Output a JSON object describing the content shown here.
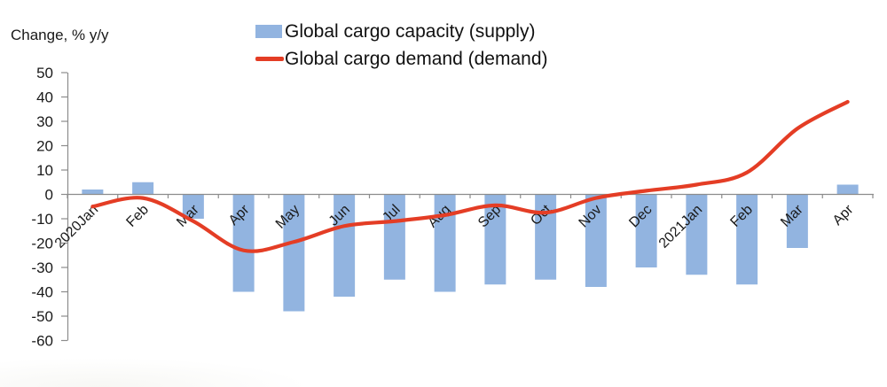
{
  "header": {
    "axis_unit_label": "Change, % y/y"
  },
  "legend": {
    "items": [
      {
        "label": "Global cargo capacity (supply)",
        "type": "bar",
        "color": "#92b4e0"
      },
      {
        "label": "Global cargo demand (demand)",
        "type": "line",
        "color": "#e43d25"
      }
    ]
  },
  "chart_data": {
    "type": "bar+line",
    "title": "",
    "ylabel": "Change, % y/y",
    "xlabel": "",
    "ylim": [
      -60,
      50
    ],
    "ytick_step": 10,
    "grid": false,
    "legend_position": "top",
    "axis_color": "#8c8c8c",
    "text_color": "#1a1a1a",
    "categories": [
      "2020Jan",
      "Feb",
      "Mar",
      "Apr",
      "May",
      "Jun",
      "Jul",
      "Aug",
      "Sep",
      "Oct",
      "Nov",
      "Dec",
      "2021Jan",
      "Feb",
      "Mar",
      "Apr"
    ],
    "series": [
      {
        "name": "Global cargo capacity (supply)",
        "type": "bar",
        "color": "#92b4e0",
        "values": [
          2,
          5,
          -10,
          -40,
          -48,
          -42,
          -35,
          -40,
          -37,
          -35,
          -38,
          -30,
          -33,
          -37,
          -22,
          4
        ]
      },
      {
        "name": "Global cargo demand (demand)",
        "type": "line",
        "smooth": true,
        "color": "#e43d25",
        "values": [
          -5,
          -1.5,
          -11,
          -23,
          -19.5,
          -13,
          -11,
          -8.5,
          -4.5,
          -7.5,
          -1.5,
          1.5,
          4,
          9,
          27,
          38
        ]
      }
    ]
  }
}
